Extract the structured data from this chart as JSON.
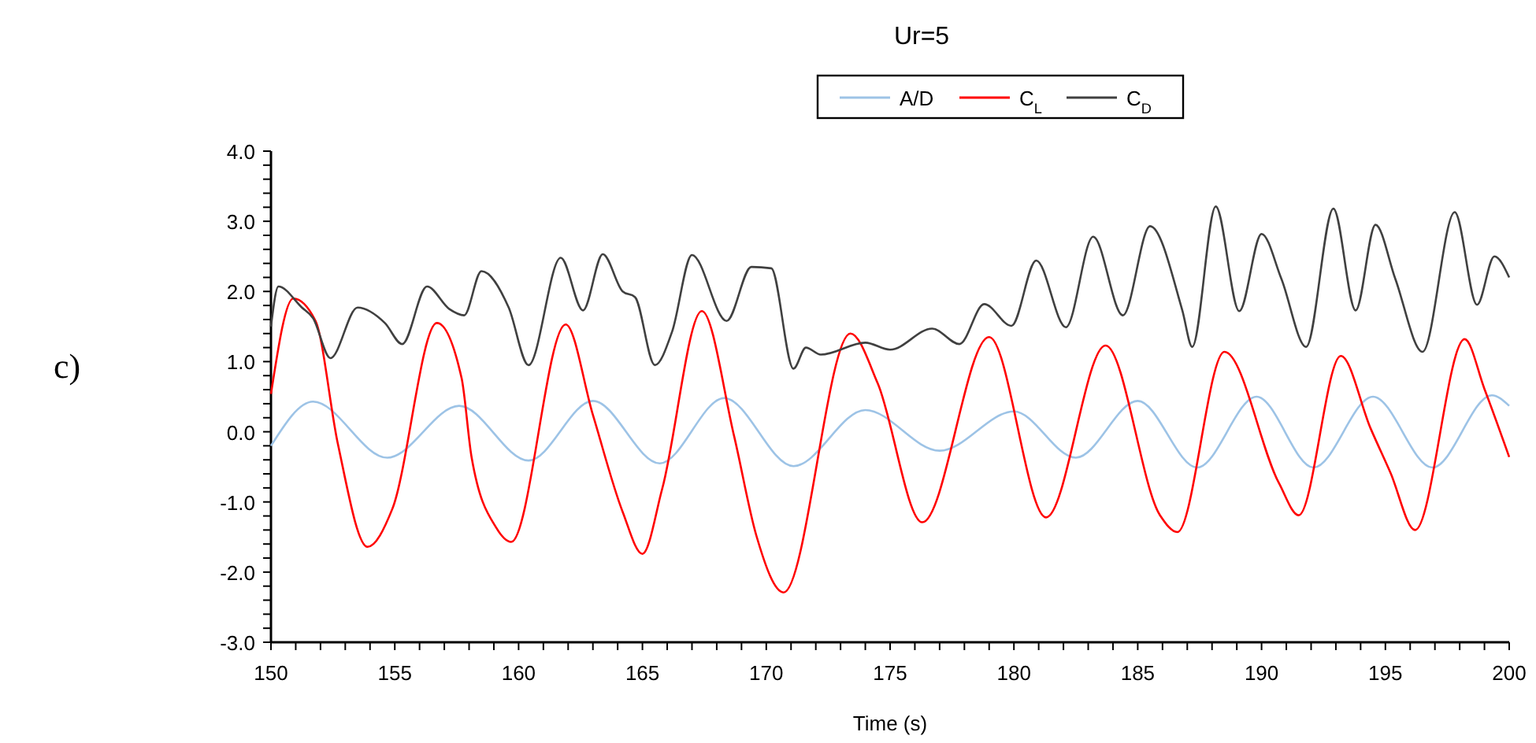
{
  "chart_data": {
    "type": "line",
    "title": "Ur=5",
    "xlabel": "Time (s)",
    "annotations": [
      "c)"
    ],
    "legend": "top",
    "grid": false,
    "marker": "none",
    "line_style": "solid",
    "xlim": [
      150,
      200
    ],
    "ylim": [
      -3,
      4
    ],
    "xticks": [
      150,
      {
        "value": 151,
        "label": null
      },
      {
        "value": 152,
        "label": null
      },
      {
        "value": 153,
        "label": null
      },
      {
        "value": 154,
        "label": null
      },
      155,
      {
        "value": 156,
        "label": null
      },
      {
        "value": 157,
        "label": null
      },
      {
        "value": 158,
        "label": null
      },
      {
        "value": 159,
        "label": null
      },
      160,
      {
        "value": 161,
        "label": null
      },
      {
        "value": 162,
        "label": null
      },
      {
        "value": 163,
        "label": null
      },
      {
        "value": 164,
        "label": null
      },
      165,
      {
        "value": 166,
        "label": null
      },
      {
        "value": 167,
        "label": null
      },
      {
        "value": 168,
        "label": null
      },
      {
        "value": 169,
        "label": null
      },
      170,
      {
        "value": 171,
        "label": null
      },
      {
        "value": 172,
        "label": null
      },
      {
        "value": 173,
        "label": null
      },
      {
        "value": 174,
        "label": null
      },
      175,
      {
        "value": 176,
        "label": null
      },
      {
        "value": 177,
        "label": null
      },
      {
        "value": 178,
        "label": null
      },
      {
        "value": 179,
        "label": null
      },
      180,
      {
        "value": 181,
        "label": null
      },
      {
        "value": 182,
        "label": null
      },
      {
        "value": 183,
        "label": null
      },
      {
        "value": 184,
        "label": null
      },
      185,
      {
        "value": 186,
        "label": null
      },
      {
        "value": 187,
        "label": null
      },
      {
        "value": 188,
        "label": null
      },
      {
        "value": 189,
        "label": null
      },
      190,
      {
        "value": 191,
        "label": null
      },
      {
        "value": 192,
        "label": null
      },
      {
        "value": 193,
        "label": null
      },
      {
        "value": 194,
        "label": null
      },
      195,
      {
        "value": 196,
        "label": null
      },
      {
        "value": 197,
        "label": null
      },
      {
        "value": 198,
        "label": null
      },
      {
        "value": 199,
        "label": null
      },
      200
    ],
    "yticks": [
      {
        "value": -3,
        "label": "-3.0"
      },
      {
        "value": -2.8,
        "label": null
      },
      {
        "value": -2.6,
        "label": null
      },
      {
        "value": -2.4,
        "label": null
      },
      {
        "value": -2.2,
        "label": null
      },
      {
        "value": -2,
        "label": "-2.0"
      },
      {
        "value": -1.8,
        "label": null
      },
      {
        "value": -1.6,
        "label": null
      },
      {
        "value": -1.4,
        "label": null
      },
      {
        "value": -1.2,
        "label": null
      },
      {
        "value": -1,
        "label": "-1.0"
      },
      {
        "value": -0.8,
        "label": null
      },
      {
        "value": -0.6,
        "label": null
      },
      {
        "value": -0.4,
        "label": null
      },
      {
        "value": -0.2,
        "label": null
      },
      {
        "value": 0,
        "label": "0.0"
      },
      {
        "value": 0.2,
        "label": null
      },
      {
        "value": 0.4,
        "label": null
      },
      {
        "value": 0.6,
        "label": null
      },
      {
        "value": 0.8,
        "label": null
      },
      {
        "value": 1,
        "label": "1.0"
      },
      {
        "value": 1.2,
        "label": null
      },
      {
        "value": 1.4,
        "label": null
      },
      {
        "value": 1.6,
        "label": null
      },
      {
        "value": 1.8,
        "label": null
      },
      {
        "value": 2,
        "label": "2.0"
      },
      {
        "value": 2.2,
        "label": null
      },
      {
        "value": 2.4,
        "label": null
      },
      {
        "value": 2.6,
        "label": null
      },
      {
        "value": 2.8,
        "label": null
      },
      {
        "value": 3,
        "label": "3.0"
      },
      {
        "value": 3.2,
        "label": null
      },
      {
        "value": 3.4,
        "label": null
      },
      {
        "value": 3.6,
        "label": null
      },
      {
        "value": 3.8,
        "label": null
      },
      {
        "value": 4,
        "label": "4.0"
      }
    ],
    "series": [
      {
        "name": "A/D",
        "color": "#9dc3e6",
        "x": [
          150,
          151.7,
          154.7,
          157.6,
          160.4,
          163,
          165.7,
          168.3,
          171.1,
          174,
          177,
          180,
          182.5,
          185,
          187.4,
          189.8,
          192.1,
          194.5,
          196.9,
          199.3,
          200
        ],
        "values": [
          -0.2,
          0.43,
          -0.37,
          0.37,
          -0.41,
          0.44,
          -0.45,
          0.48,
          -0.49,
          0.31,
          -0.27,
          0.29,
          -0.37,
          0.44,
          -0.51,
          0.5,
          -0.51,
          0.5,
          -0.51,
          0.52,
          0.37
        ]
      },
      {
        "name": "C$_{L}$",
        "color": "#ff0000",
        "x": [
          150,
          150.9,
          151.8,
          152.7,
          153.9,
          154.9,
          156.7,
          157.7,
          158.1,
          159.1,
          159.7,
          161.9,
          163,
          164.2,
          165,
          165.8,
          167.4,
          168.7,
          169.6,
          170.7,
          173.4,
          174.5,
          176.3,
          179,
          181.3,
          183.7,
          185.9,
          186.6,
          188.5,
          190.7,
          191.5,
          193.2,
          194.4,
          195.2,
          196.2,
          198.2,
          199,
          200
        ],
        "values": [
          0.54,
          1.9,
          1.58,
          -0.17,
          -1.64,
          -1.1,
          1.55,
          0.76,
          -0.36,
          -1.37,
          -1.57,
          1.53,
          0.24,
          -1.14,
          -1.74,
          -0.81,
          1.72,
          -0.06,
          -1.48,
          -2.29,
          1.4,
          0.69,
          -1.29,
          1.35,
          -1.22,
          1.23,
          -1.19,
          -1.43,
          1.14,
          -0.73,
          -1.19,
          1.08,
          0.05,
          -0.58,
          -1.4,
          1.32,
          0.61,
          -0.36
        ]
      },
      {
        "name": "C$_{D}$",
        "color": "#404040",
        "x": [
          150,
          150.3,
          151.25,
          151.7,
          152.4,
          153.5,
          154.6,
          155.3,
          156.3,
          157.2,
          157.8,
          158.5,
          159.6,
          160.4,
          161.7,
          162.6,
          163.4,
          164.2,
          164.7,
          165.5,
          166.2,
          167,
          168.4,
          169.4,
          170.2,
          171.1,
          171.6,
          172.2,
          174,
          175,
          176.7,
          177.8,
          178.8,
          179.9,
          180.9,
          182.1,
          183.2,
          184.4,
          185.5,
          186.8,
          187.2,
          188.15,
          189.1,
          190,
          190.8,
          191.8,
          192.9,
          193.8,
          194.6,
          195.4,
          196.5,
          197.8,
          198.7,
          199.4,
          200
        ],
        "values": [
          1.5,
          2.07,
          1.77,
          1.62,
          1.05,
          1.77,
          1.55,
          1.25,
          2.07,
          1.75,
          1.66,
          2.29,
          1.77,
          0.95,
          2.48,
          1.73,
          2.53,
          2,
          1.92,
          0.95,
          1.43,
          2.52,
          1.58,
          2.35,
          2.33,
          0.9,
          1.2,
          1.1,
          1.27,
          1.17,
          1.47,
          1.25,
          1.82,
          1.51,
          2.44,
          1.49,
          2.78,
          1.66,
          2.93,
          1.73,
          1.21,
          3.21,
          1.72,
          2.82,
          2.18,
          1.21,
          3.18,
          1.73,
          2.95,
          2.18,
          1.14,
          3.13,
          1.81,
          2.5,
          2.2
        ]
      }
    ]
  }
}
